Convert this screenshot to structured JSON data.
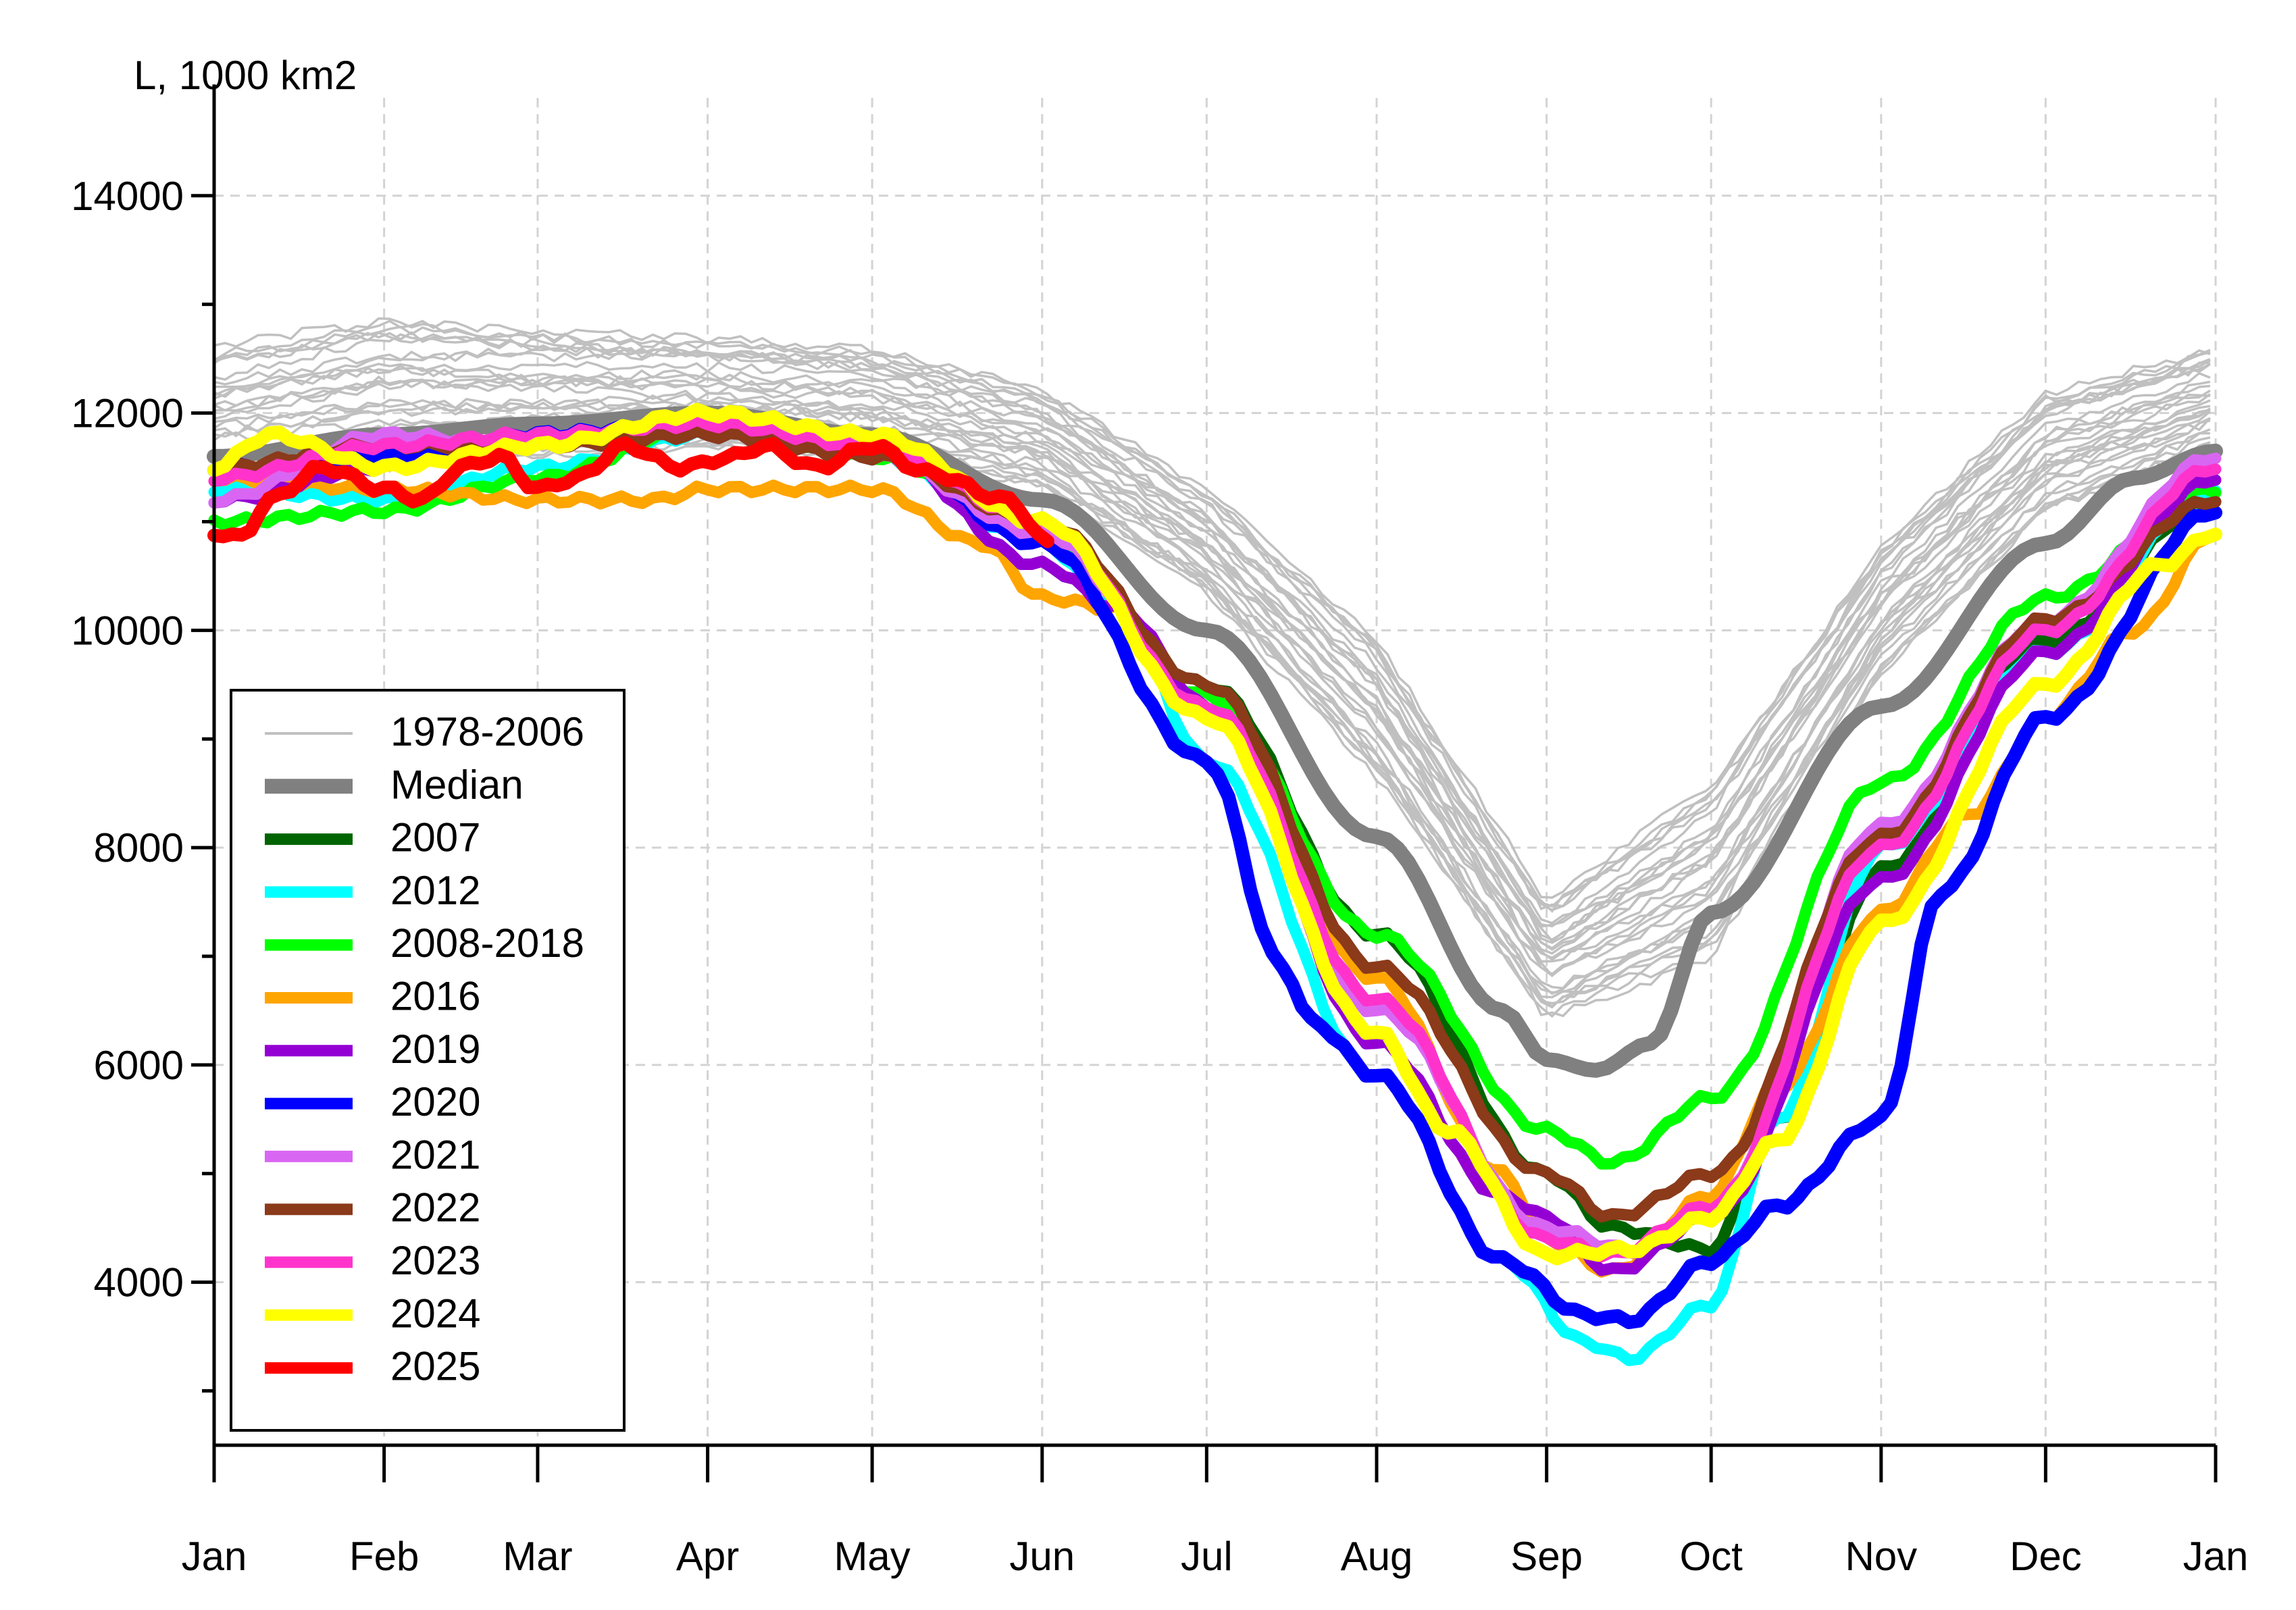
{
  "chart_data": {
    "type": "line",
    "title": "",
    "ylabel": "L, 1000 km2",
    "xlabel": "",
    "ylim": [
      2500,
      14900
    ],
    "xlim": [
      0,
      365
    ],
    "grid": true,
    "legend_position": "bottom-left",
    "yticks_labeled": [
      4000,
      6000,
      8000,
      10000,
      12000,
      14000
    ],
    "yticks_minor": [
      3000,
      5000,
      7000,
      9000,
      11000,
      13000
    ],
    "xticks": [
      {
        "label": "Jan",
        "day": 0
      },
      {
        "label": "Feb",
        "day": 31
      },
      {
        "label": "Mar",
        "day": 59
      },
      {
        "label": "Apr",
        "day": 90
      },
      {
        "label": "May",
        "day": 120
      },
      {
        "label": "Jun",
        "day": 151
      },
      {
        "label": "Jul",
        "day": 181
      },
      {
        "label": "Aug",
        "day": 212
      },
      {
        "label": "Sep",
        "day": 243
      },
      {
        "label": "Oct",
        "day": 273
      },
      {
        "label": "Nov",
        "day": 304
      },
      {
        "label": "Dec",
        "day": 334
      },
      {
        "label": "Jan",
        "day": 365
      }
    ],
    "background_band": {
      "name": "1978-2006",
      "color": "#c0c0c0",
      "days": [
        0,
        31,
        59,
        90,
        120,
        151,
        181,
        212,
        243,
        273,
        304,
        334,
        365
      ],
      "lower": [
        11300,
        11500,
        11600,
        11700,
        11600,
        11300,
        10300,
        8600,
        6400,
        7000,
        9600,
        11100,
        11700
      ],
      "upper": [
        12600,
        12900,
        12800,
        12700,
        12600,
        12200,
        11300,
        9900,
        7500,
        8600,
        10800,
        12200,
        12600
      ],
      "count": 29
    },
    "series": [
      {
        "name": "Median",
        "color": "#808080",
        "width": 22,
        "points": [
          [
            0,
            11600
          ],
          [
            31,
            11800
          ],
          [
            59,
            11900
          ],
          [
            90,
            12000
          ],
          [
            120,
            11800
          ],
          [
            151,
            11200
          ],
          [
            181,
            10000
          ],
          [
            212,
            8100
          ],
          [
            235,
            6500
          ],
          [
            243,
            6050
          ],
          [
            252,
            5950
          ],
          [
            262,
            6200
          ],
          [
            273,
            7400
          ],
          [
            304,
            9300
          ],
          [
            334,
            10800
          ],
          [
            350,
            11400
          ],
          [
            365,
            11650
          ]
        ]
      },
      {
        "name": "2007",
        "color": "#006400",
        "width": 17,
        "points": [
          [
            0,
            11500
          ],
          [
            31,
            11600
          ],
          [
            59,
            11700
          ],
          [
            90,
            11800
          ],
          [
            120,
            11700
          ],
          [
            151,
            11000
          ],
          [
            181,
            9500
          ],
          [
            212,
            7200
          ],
          [
            243,
            5000
          ],
          [
            255,
            4500
          ],
          [
            273,
            4300
          ],
          [
            285,
            5500
          ],
          [
            304,
            7800
          ],
          [
            334,
            9900
          ],
          [
            365,
            11200
          ]
        ]
      },
      {
        "name": "2012",
        "color": "#00ffff",
        "width": 17,
        "points": [
          [
            0,
            11300
          ],
          [
            31,
            11200
          ],
          [
            59,
            11500
          ],
          [
            90,
            11800
          ],
          [
            120,
            11600
          ],
          [
            151,
            10800
          ],
          [
            165,
            10200
          ],
          [
            181,
            8800
          ],
          [
            212,
            5900
          ],
          [
            235,
            4200
          ],
          [
            250,
            3450
          ],
          [
            258,
            3300
          ],
          [
            273,
            3800
          ],
          [
            285,
            5500
          ],
          [
            304,
            8000
          ],
          [
            334,
            9800
          ],
          [
            365,
            11300
          ]
        ]
      },
      {
        "name": "2008-2018",
        "color": "#00ff00",
        "width": 17,
        "points": [
          [
            0,
            11000
          ],
          [
            31,
            11100
          ],
          [
            59,
            11400
          ],
          [
            90,
            11900
          ],
          [
            120,
            11600
          ],
          [
            151,
            10900
          ],
          [
            181,
            9400
          ],
          [
            212,
            7200
          ],
          [
            243,
            5400
          ],
          [
            255,
            5100
          ],
          [
            273,
            5700
          ],
          [
            304,
            8600
          ],
          [
            334,
            10300
          ],
          [
            365,
            11300
          ]
        ]
      },
      {
        "name": "2016",
        "color": "#ffa500",
        "width": 17,
        "points": [
          [
            0,
            11400
          ],
          [
            31,
            11300
          ],
          [
            59,
            11200
          ],
          [
            80,
            11200
          ],
          [
            90,
            11300
          ],
          [
            120,
            11300
          ],
          [
            140,
            10800
          ],
          [
            151,
            10300
          ],
          [
            165,
            10200
          ],
          [
            181,
            9200
          ],
          [
            212,
            6800
          ],
          [
            235,
            5000
          ],
          [
            243,
            4400
          ],
          [
            255,
            4100
          ],
          [
            273,
            4800
          ],
          [
            285,
            5800
          ],
          [
            304,
            7400
          ],
          [
            320,
            8300
          ],
          [
            334,
            9200
          ],
          [
            350,
            10000
          ],
          [
            365,
            10900
          ]
        ]
      },
      {
        "name": "2019",
        "color": "#9400d3",
        "width": 17,
        "points": [
          [
            0,
            11200
          ],
          [
            31,
            11500
          ],
          [
            59,
            11700
          ],
          [
            90,
            11800
          ],
          [
            120,
            11700
          ],
          [
            151,
            10600
          ],
          [
            165,
            10200
          ],
          [
            181,
            9300
          ],
          [
            212,
            6200
          ],
          [
            235,
            4800
          ],
          [
            243,
            4600
          ],
          [
            255,
            4100
          ],
          [
            273,
            4600
          ],
          [
            304,
            7700
          ],
          [
            334,
            9800
          ],
          [
            365,
            11400
          ]
        ]
      },
      {
        "name": "2020",
        "color": "#0000ff",
        "width": 20,
        "points": [
          [
            0,
            11500
          ],
          [
            31,
            11600
          ],
          [
            59,
            11800
          ],
          [
            90,
            11900
          ],
          [
            120,
            11700
          ],
          [
            151,
            10800
          ],
          [
            181,
            8800
          ],
          [
            195,
            6900
          ],
          [
            200,
            6400
          ],
          [
            212,
            5900
          ],
          [
            235,
            4200
          ],
          [
            250,
            3700
          ],
          [
            258,
            3650
          ],
          [
            273,
            4200
          ],
          [
            285,
            4700
          ],
          [
            304,
            5500
          ],
          [
            315,
            7600
          ],
          [
            334,
            9200
          ],
          [
            365,
            11100
          ]
        ]
      },
      {
        "name": "2021",
        "color": "#d966f2",
        "width": 17,
        "points": [
          [
            0,
            11200
          ],
          [
            31,
            11800
          ],
          [
            59,
            11700
          ],
          [
            90,
            11800
          ],
          [
            120,
            11600
          ],
          [
            151,
            10900
          ],
          [
            181,
            9300
          ],
          [
            212,
            6500
          ],
          [
            243,
            4500
          ],
          [
            258,
            4300
          ],
          [
            273,
            4700
          ],
          [
            304,
            8200
          ],
          [
            334,
            10100
          ],
          [
            365,
            11600
          ]
        ]
      },
      {
        "name": "2022",
        "color": "#8b3a1a",
        "width": 17,
        "points": [
          [
            0,
            11500
          ],
          [
            31,
            11700
          ],
          [
            59,
            11700
          ],
          [
            90,
            11800
          ],
          [
            120,
            11600
          ],
          [
            151,
            11000
          ],
          [
            181,
            9500
          ],
          [
            212,
            6900
          ],
          [
            243,
            5000
          ],
          [
            255,
            4600
          ],
          [
            273,
            5000
          ],
          [
            304,
            8100
          ],
          [
            334,
            10100
          ],
          [
            365,
            11200
          ]
        ]
      },
      {
        "name": "2023",
        "color": "#ff33cc",
        "width": 17,
        "points": [
          [
            0,
            11400
          ],
          [
            31,
            11700
          ],
          [
            59,
            11800
          ],
          [
            90,
            11900
          ],
          [
            120,
            11700
          ],
          [
            151,
            11000
          ],
          [
            181,
            9300
          ],
          [
            212,
            6600
          ],
          [
            243,
            4400
          ],
          [
            255,
            4250
          ],
          [
            273,
            4700
          ],
          [
            304,
            8000
          ],
          [
            334,
            10000
          ],
          [
            365,
            11500
          ]
        ]
      },
      {
        "name": "2024",
        "color": "#ffff00",
        "width": 20,
        "points": [
          [
            0,
            11500
          ],
          [
            10,
            11800
          ],
          [
            31,
            11500
          ],
          [
            59,
            11700
          ],
          [
            90,
            12000
          ],
          [
            120,
            11800
          ],
          [
            151,
            11000
          ],
          [
            181,
            9200
          ],
          [
            212,
            6300
          ],
          [
            225,
            5400
          ],
          [
            243,
            4250
          ],
          [
            258,
            4300
          ],
          [
            273,
            4600
          ],
          [
            285,
            5300
          ],
          [
            304,
            7300
          ],
          [
            334,
            9500
          ],
          [
            355,
            10600
          ],
          [
            365,
            10900
          ]
        ]
      },
      {
        "name": "2025",
        "color": "#ff0000",
        "width": 20,
        "points": [
          [
            0,
            10900
          ],
          [
            5,
            10850
          ],
          [
            10,
            11200
          ],
          [
            20,
            11500
          ],
          [
            31,
            11300
          ],
          [
            38,
            11200
          ],
          [
            45,
            11500
          ],
          [
            52,
            11600
          ],
          [
            59,
            11300
          ],
          [
            66,
            11400
          ],
          [
            75,
            11700
          ],
          [
            85,
            11500
          ],
          [
            95,
            11600
          ],
          [
            100,
            11700
          ],
          [
            110,
            11500
          ],
          [
            120,
            11700
          ],
          [
            130,
            11450
          ],
          [
            145,
            11200
          ],
          [
            152,
            10800
          ]
        ]
      }
    ]
  },
  "legend": {
    "entries": [
      {
        "label": "1978-2006",
        "color": "#c0c0c0",
        "width": 4
      },
      {
        "label": "Median",
        "color": "#808080",
        "width": 22
      },
      {
        "label": "2007",
        "color": "#006400",
        "width": 17
      },
      {
        "label": "2012",
        "color": "#00ffff",
        "width": 17
      },
      {
        "label": "2008-2018",
        "color": "#00ff00",
        "width": 17
      },
      {
        "label": "2016",
        "color": "#ffa500",
        "width": 17
      },
      {
        "label": "2019",
        "color": "#9400d3",
        "width": 17
      },
      {
        "label": "2020",
        "color": "#0000ff",
        "width": 17
      },
      {
        "label": "2021",
        "color": "#d966f2",
        "width": 17
      },
      {
        "label": "2022",
        "color": "#8b3a1a",
        "width": 17
      },
      {
        "label": "2023",
        "color": "#ff33cc",
        "width": 17
      },
      {
        "label": "2024",
        "color": "#ffff00",
        "width": 17
      },
      {
        "label": "2025",
        "color": "#ff0000",
        "width": 17
      }
    ]
  }
}
